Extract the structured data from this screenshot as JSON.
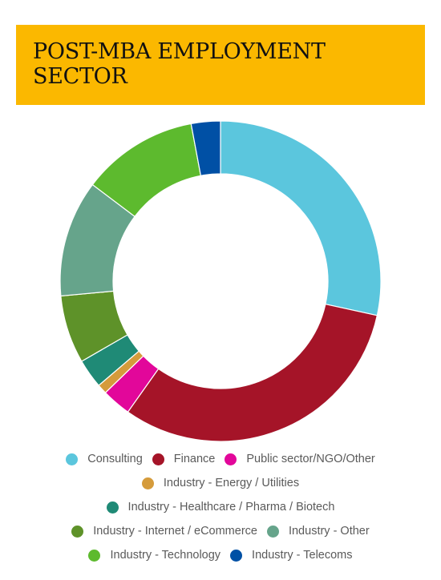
{
  "title": "POST-MBA EMPLOYMENT SECTOR",
  "chart_data": {
    "type": "pie",
    "donut": true,
    "series": [
      {
        "name": "Consulting",
        "value": 29,
        "color": "#5bc6dd"
      },
      {
        "name": "Finance",
        "value": 32,
        "color": "#a51428"
      },
      {
        "name": "Public sector/NGO/Other",
        "value": 3,
        "color": "#e2079a"
      },
      {
        "name": "Industry - Energy / Utilities",
        "value": 1,
        "color": "#d59b3b"
      },
      {
        "name": "Industry - Healthcare / Pharma / Biotech",
        "value": 3,
        "color": "#1f8a76"
      },
      {
        "name": "Industry - Internet / eCommerce",
        "value": 7,
        "color": "#5e9229"
      },
      {
        "name": "Industry - Other",
        "value": 12,
        "color": "#66a48b"
      },
      {
        "name": "Industry - Technology",
        "value": 12,
        "color": "#5dba2e"
      },
      {
        "name": "Industry - Telecoms",
        "value": 3,
        "color": "#0050a5"
      }
    ],
    "legend_position": "bottom"
  }
}
